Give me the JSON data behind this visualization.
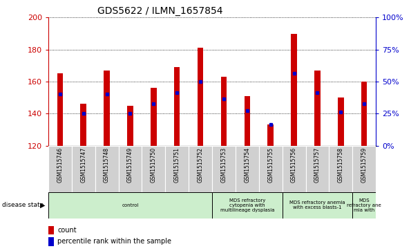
{
  "title": "GDS5622 / ILMN_1657854",
  "samples": [
    "GSM1515746",
    "GSM1515747",
    "GSM1515748",
    "GSM1515749",
    "GSM1515750",
    "GSM1515751",
    "GSM1515752",
    "GSM1515753",
    "GSM1515754",
    "GSM1515755",
    "GSM1515756",
    "GSM1515757",
    "GSM1515758",
    "GSM1515759"
  ],
  "counts": [
    165,
    146,
    167,
    145,
    156,
    169,
    181,
    163,
    151,
    133,
    190,
    167,
    150,
    160
  ],
  "percentile_values": [
    152,
    140,
    152,
    140,
    146,
    153,
    160,
    149,
    142,
    133,
    165,
    153,
    141,
    146
  ],
  "ymin": 120,
  "ymax": 200,
  "bar_color": "#cc0000",
  "percentile_color": "#0000cc",
  "bar_width": 0.25,
  "disease_groups": [
    {
      "label": "control",
      "start": 0,
      "end": 7
    },
    {
      "label": "MDS refractory\ncytopenia with\nmultilineage dysplasia",
      "start": 7,
      "end": 10
    },
    {
      "label": "MDS refractory anemia\nwith excess blasts-1",
      "start": 10,
      "end": 13
    },
    {
      "label": "MDS\nrefractory ane\nmia with",
      "start": 13,
      "end": 14
    }
  ],
  "group_color": "#cceecc",
  "xtick_bg_color": "#d0d0d0",
  "pct_ticks": [
    0,
    25,
    50,
    75,
    100
  ],
  "yticks": [
    120,
    140,
    160,
    180,
    200
  ]
}
